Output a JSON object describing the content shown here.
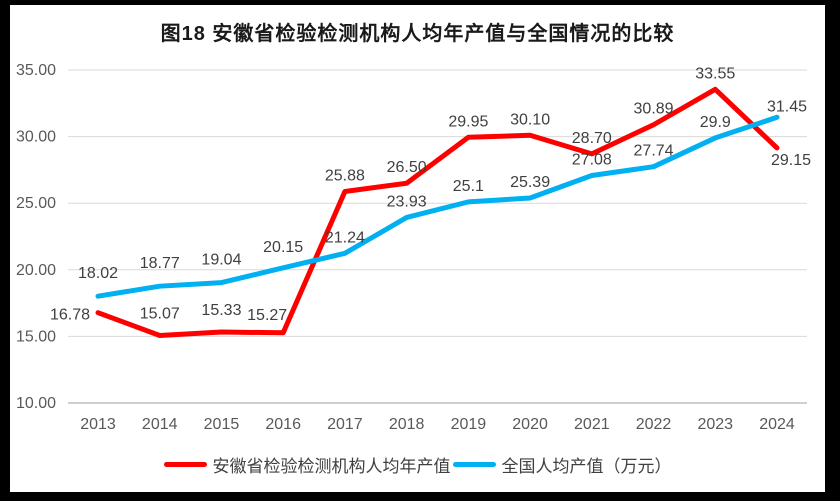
{
  "chart_data": {
    "type": "line",
    "title": "图18 安徽省检验检测机构人均年产值与全国情况的比较",
    "categories": [
      "2013",
      "2014",
      "2015",
      "2016",
      "2017",
      "2018",
      "2019",
      "2020",
      "2021",
      "2022",
      "2023",
      "2024"
    ],
    "series": [
      {
        "name": "安徽省检验检测机构人均年产值",
        "color": "#FF0000",
        "values": [
          16.78,
          15.07,
          15.33,
          15.27,
          25.88,
          26.5,
          29.95,
          30.1,
          28.7,
          30.89,
          33.55,
          29.15
        ],
        "value_labels": [
          "16.78",
          "15.07",
          "15.33",
          "15.27",
          "25.88",
          "26.50",
          "29.95",
          "30.10",
          "28.70",
          "30.89",
          "33.55",
          "29.15"
        ]
      },
      {
        "name": "全国人均产值（万元）",
        "color": "#00B0F0",
        "values": [
          18.02,
          18.77,
          19.04,
          20.15,
          21.24,
          23.93,
          25.1,
          25.39,
          27.08,
          27.74,
          29.9,
          31.45
        ],
        "value_labels": [
          "18.02",
          "18.77",
          "19.04",
          "20.15",
          "21.24",
          "23.93",
          "25.1",
          "25.39",
          "27.08",
          "27.74",
          "29.9",
          "31.45"
        ]
      }
    ],
    "y_axis": {
      "min": 10,
      "max": 35,
      "step": 5,
      "tick_labels": [
        "10.00",
        "15.00",
        "20.00",
        "25.00",
        "30.00",
        "35.00"
      ]
    },
    "xlabel": "",
    "ylabel": "",
    "grid": true,
    "legend_position": "bottom",
    "colors": {
      "red_series": "#FF0000",
      "blue_series": "#00B0F0",
      "gridline": "#D9D9D9",
      "axis_line": "#BFBFBF",
      "tick_text": "#595959",
      "data_label_text": "#404040",
      "title_text": "#1A1A1A",
      "frame": "#000000",
      "background": "#FFFFFF"
    }
  }
}
